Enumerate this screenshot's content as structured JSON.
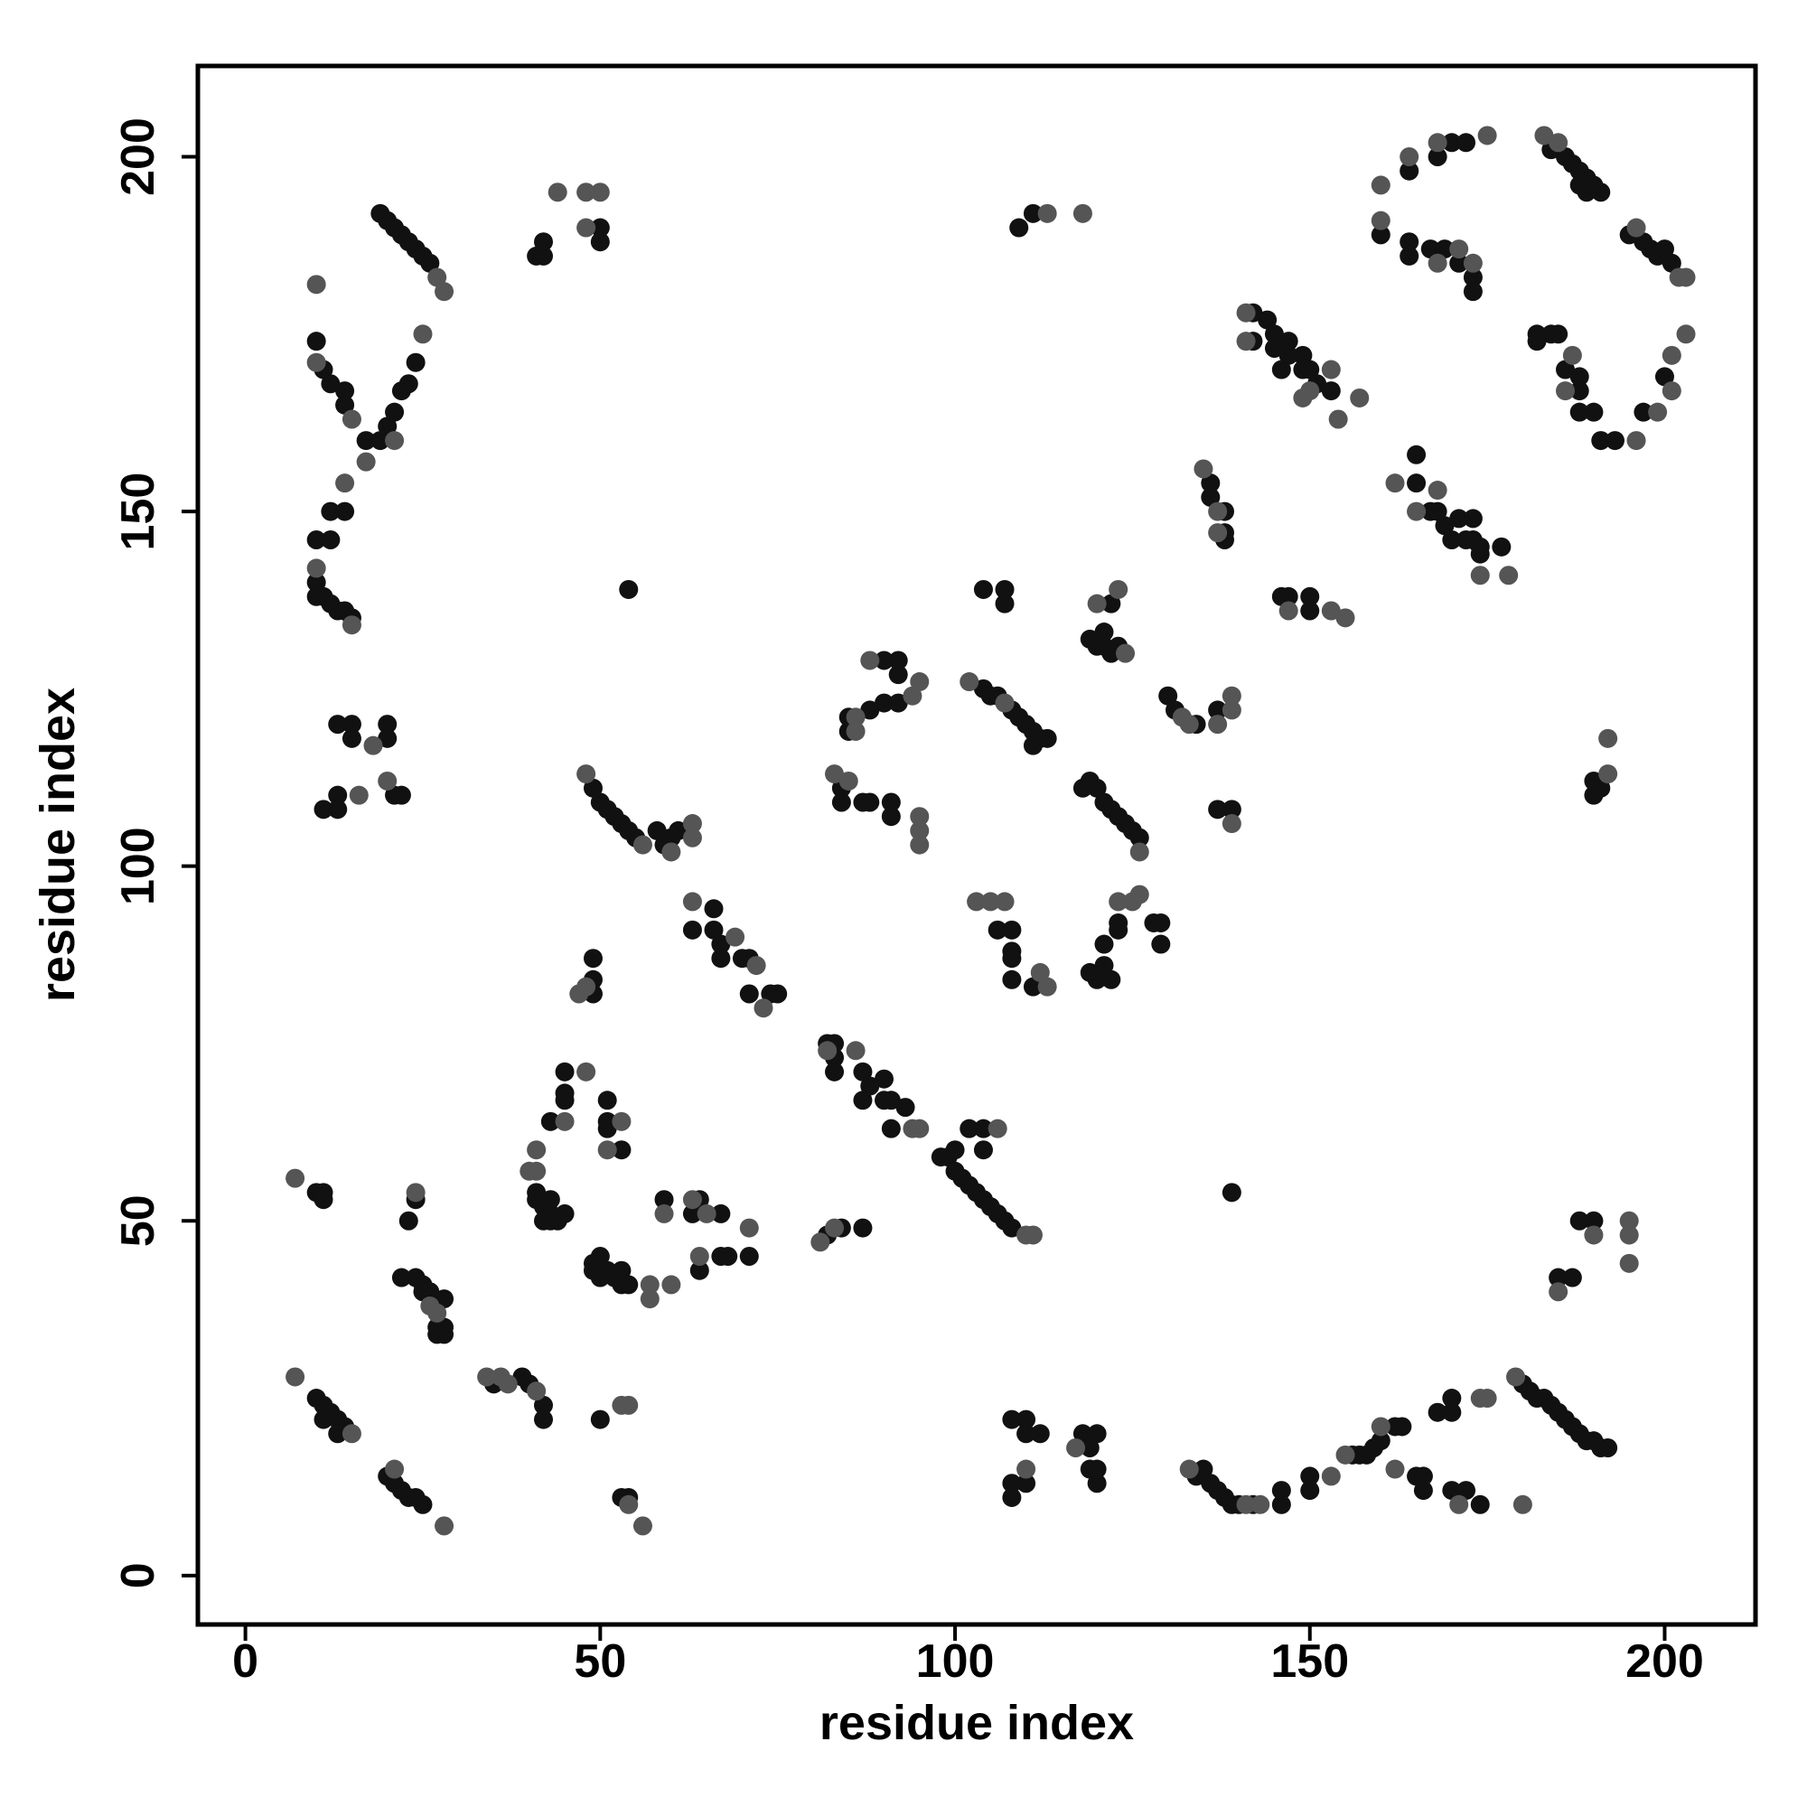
{
  "chart_data": {
    "type": "scatter",
    "xlabel": "residue index",
    "ylabel": "residue index",
    "xlim": [
      -6.7,
      212.8
    ],
    "ylim": [
      -6.9,
      212.8
    ],
    "xticks": [
      0,
      50,
      100,
      150,
      200
    ],
    "yticks": [
      0,
      50,
      100,
      150,
      200
    ],
    "grid": false,
    "series": [
      {
        "color": "#111111",
        "x": [
          19,
          20,
          21,
          22,
          23,
          24,
          25,
          26,
          10,
          11,
          12,
          14,
          14,
          17,
          19,
          20,
          21,
          22,
          23,
          24,
          10,
          12,
          12,
          14,
          10,
          10,
          11,
          12,
          13,
          14,
          15,
          13,
          15,
          15,
          20,
          20,
          22,
          11,
          13,
          13,
          21,
          41,
          42,
          42,
          50,
          50,
          54,
          109,
          111,
          160,
          164,
          168,
          170,
          172,
          164,
          164,
          167,
          169,
          171,
          173,
          173,
          184,
          186,
          187,
          188,
          189,
          190,
          191,
          188,
          189,
          195,
          197,
          198,
          199,
          200,
          201,
          200,
          197,
          193,
          191,
          190,
          188,
          188,
          188,
          186,
          185,
          184,
          182,
          182,
          142,
          142,
          144,
          145,
          145,
          146,
          147,
          147,
          149,
          149,
          150,
          151,
          153,
          136,
          136,
          138,
          138,
          138,
          146,
          147,
          150,
          150,
          165,
          165,
          167,
          168,
          169,
          170,
          171,
          172,
          173,
          173,
          174,
          174,
          177,
          104,
          107,
          107,
          121,
          122,
          119,
          120,
          121,
          122,
          123,
          90,
          92,
          92,
          90,
          92,
          88,
          85,
          85,
          104,
          105,
          106,
          108,
          109,
          110,
          111,
          112,
          113,
          111,
          130,
          131,
          134,
          137,
          84,
          84,
          87,
          88,
          91,
          91,
          118,
          119,
          120,
          121,
          122,
          123,
          124,
          125,
          126,
          137,
          139,
          190,
          190,
          191,
          49,
          50,
          51,
          52,
          53,
          54,
          55,
          58,
          59,
          60,
          61,
          63,
          66,
          66,
          67,
          67,
          70,
          71,
          71,
          74,
          75,
          106,
          108,
          108,
          108,
          108,
          111,
          119,
          120,
          122,
          121,
          121,
          123,
          123,
          128,
          129,
          129,
          49,
          49,
          49,
          82,
          83,
          83,
          83,
          87,
          87,
          88,
          90,
          90,
          91,
          91,
          93,
          45,
          45,
          45,
          43,
          51,
          51,
          51,
          53,
          41,
          41,
          42,
          43,
          43,
          42,
          44,
          45,
          43,
          10,
          11,
          11,
          23,
          24,
          22,
          24,
          25,
          25,
          26,
          27,
          28,
          28,
          28,
          27,
          49,
          49,
          50,
          50,
          51,
          52,
          53,
          53,
          54,
          59,
          63,
          64,
          64,
          67,
          67,
          68,
          71,
          84,
          87,
          82,
          98,
          99,
          100,
          101,
          102,
          103,
          104,
          105,
          106,
          107,
          108,
          102,
          104,
          104,
          100,
          139,
          188,
          190,
          185,
          187,
          10,
          11,
          12,
          13,
          14,
          11,
          13,
          20,
          21,
          22,
          23,
          24,
          25,
          35,
          39,
          40,
          42,
          42,
          50,
          53,
          54,
          108,
          110,
          110,
          112,
          108,
          110,
          108,
          118,
          119,
          120,
          119,
          120,
          120,
          134,
          135,
          136,
          137,
          138,
          139,
          140,
          142,
          146,
          146,
          150,
          150,
          156,
          157,
          158,
          159,
          160,
          162,
          163,
          165,
          166,
          166,
          168,
          170,
          170,
          170,
          172,
          174,
          180,
          181,
          182,
          183,
          184,
          185,
          186,
          187,
          188,
          189,
          190,
          191,
          192
        ],
        "values": [
          192,
          191,
          190,
          189,
          188,
          187,
          186,
          185,
          174,
          170,
          168,
          167,
          165,
          160,
          160,
          162,
          164,
          167,
          168,
          171,
          146,
          146,
          150,
          150,
          140,
          138,
          138,
          137,
          136,
          136,
          135,
          120,
          120,
          118,
          120,
          118,
          110,
          108,
          110,
          108,
          110,
          186,
          188,
          186,
          190,
          188,
          139,
          190,
          192,
          189,
          198,
          200,
          202,
          202,
          188,
          186,
          187,
          187,
          185,
          183,
          181,
          201,
          200,
          199,
          198,
          197,
          196,
          195,
          196,
          195,
          189,
          188,
          187,
          186,
          187,
          185,
          169,
          164,
          160,
          160,
          164,
          164,
          167,
          169,
          170,
          175,
          175,
          175,
          174,
          178,
          174,
          177,
          175,
          173,
          170,
          174,
          172,
          172,
          170,
          170,
          168,
          167,
          154,
          152,
          150,
          147,
          146,
          138,
          138,
          138,
          136,
          158,
          154,
          150,
          150,
          148,
          146,
          149,
          146,
          149,
          146,
          144,
          145,
          145,
          139,
          139,
          137,
          133,
          137,
          132,
          131,
          131,
          130,
          131,
          129,
          129,
          127,
          123,
          123,
          122,
          121,
          119,
          125,
          124,
          124,
          122,
          121,
          120,
          119,
          118,
          118,
          117,
          124,
          122,
          120,
          122,
          111,
          109,
          109,
          109,
          109,
          107,
          111,
          112,
          111,
          109,
          108,
          107,
          106,
          105,
          104,
          108,
          108,
          110,
          112,
          111,
          111,
          109,
          108,
          107,
          106,
          105,
          104,
          105,
          103,
          104,
          105,
          91,
          94,
          91,
          89,
          87,
          87,
          87,
          82,
          82,
          82,
          91,
          91,
          88,
          87,
          84,
          83,
          85,
          84,
          84,
          86,
          89,
          91,
          92,
          92,
          92,
          89,
          84,
          87,
          82,
          75,
          75,
          73,
          71,
          71,
          67,
          69,
          70,
          67,
          67,
          63,
          66,
          71,
          68,
          67,
          64,
          67,
          64,
          63,
          60,
          54,
          53,
          52,
          53,
          51,
          50,
          50,
          51,
          50,
          54,
          53,
          54,
          50,
          53,
          42,
          42,
          40,
          41,
          40,
          35,
          39,
          35,
          34,
          34,
          43,
          44,
          42,
          45,
          43,
          42,
          41,
          43,
          41,
          53,
          51,
          53,
          43,
          51,
          45,
          45,
          45,
          49,
          49,
          48,
          59,
          59,
          57,
          56,
          55,
          54,
          53,
          52,
          51,
          50,
          49,
          63,
          63,
          60,
          60,
          54,
          50,
          50,
          42,
          42,
          25,
          24,
          23,
          22,
          21,
          22,
          20,
          14,
          13,
          12,
          11,
          11,
          10,
          27,
          28,
          27,
          24,
          22,
          22,
          11,
          11,
          22,
          22,
          20,
          20,
          13,
          13,
          11,
          20,
          18,
          20,
          15,
          13,
          15,
          14,
          15,
          13,
          12,
          11,
          10,
          10,
          10,
          12,
          10,
          14,
          12,
          17,
          17,
          17,
          18,
          19,
          21,
          21,
          14,
          14,
          12,
          23,
          25,
          23,
          12,
          12,
          10,
          27,
          26,
          25,
          25,
          24,
          23,
          22,
          21,
          20,
          19,
          19,
          18,
          18
        ]
      },
      {
        "color": "#555555",
        "x": [
          10,
          10,
          15,
          17,
          25,
          21,
          14,
          10,
          15,
          18,
          20,
          16,
          44,
          48,
          50,
          48,
          113,
          118,
          160,
          160,
          164,
          168,
          175,
          168,
          171,
          173,
          183,
          185,
          196,
          202,
          203,
          203,
          201,
          201,
          199,
          186,
          187,
          196,
          141,
          141,
          150,
          153,
          154,
          157,
          149,
          135,
          137,
          137,
          147,
          153,
          155,
          162,
          165,
          168,
          174,
          178,
          120,
          123,
          124,
          88,
          95,
          94,
          86,
          86,
          102,
          107,
          132,
          133,
          137,
          139,
          139,
          83,
          85,
          95,
          95,
          95,
          126,
          139,
          192,
          192,
          48,
          56,
          63,
          63,
          60,
          63,
          69,
          72,
          73,
          103,
          105,
          107,
          112,
          113,
          123,
          125,
          126,
          47,
          48,
          82,
          86,
          94,
          95,
          45,
          48,
          51,
          53,
          40,
          41,
          41,
          7,
          24,
          57,
          57,
          60,
          59,
          63,
          65,
          64,
          71,
          81,
          83,
          110,
          111,
          106,
          190,
          195,
          195,
          195,
          185,
          7,
          15,
          21,
          28,
          34,
          36,
          37,
          41,
          53,
          54,
          54,
          56,
          110,
          117,
          133,
          141,
          143,
          153,
          155,
          160,
          162,
          171,
          174,
          175,
          179,
          180,
          27,
          28,
          26,
          27
        ],
        "values": [
          182,
          171,
          163,
          157,
          175,
          160,
          154,
          142,
          134,
          117,
          112,
          110,
          195,
          195,
          195,
          190,
          192,
          192,
          196,
          191,
          200,
          202,
          203,
          185,
          187,
          185,
          203,
          202,
          190,
          183,
          183,
          175,
          172,
          167,
          164,
          167,
          172,
          160,
          178,
          174,
          167,
          170,
          163,
          166,
          166,
          156,
          150,
          147,
          136,
          136,
          135,
          154,
          150,
          153,
          141,
          141,
          137,
          139,
          130,
          129,
          126,
          124,
          121,
          119,
          126,
          123,
          121,
          120,
          120,
          124,
          122,
          113,
          112,
          107,
          105,
          103,
          102,
          106,
          118,
          113,
          113,
          103,
          106,
          104,
          102,
          95,
          90,
          86,
          80,
          95,
          95,
          95,
          85,
          83,
          95,
          95,
          96,
          82,
          83,
          74,
          74,
          63,
          63,
          64,
          71,
          60,
          64,
          57,
          57,
          60,
          56,
          54,
          41,
          39,
          41,
          51,
          53,
          51,
          45,
          49,
          47,
          49,
          48,
          48,
          63,
          48,
          50,
          48,
          44,
          40,
          28,
          20,
          15,
          7,
          28,
          28,
          27,
          26,
          24,
          24,
          10,
          7,
          15,
          18,
          15,
          10,
          10,
          14,
          17,
          21,
          15,
          10,
          25,
          25,
          28,
          10,
          183,
          181,
          38,
          37
        ]
      }
    ]
  }
}
